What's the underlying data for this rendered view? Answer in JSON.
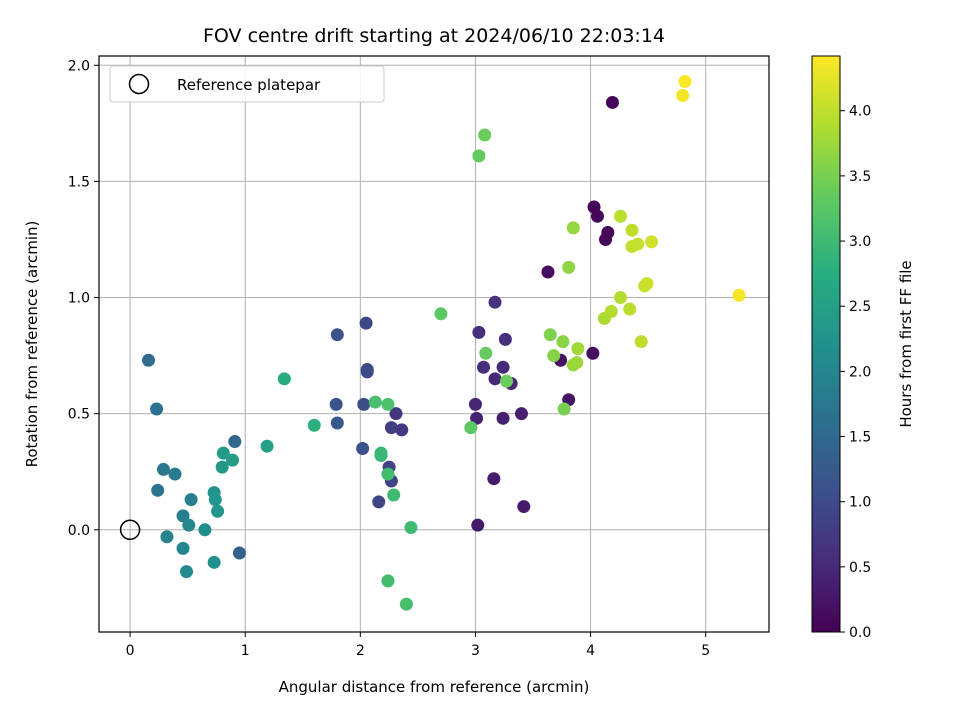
{
  "chart_data": {
    "type": "scatter",
    "title": "FOV centre drift starting at 2024/06/10 22:03:14",
    "xlabel": "Angular distance from reference (arcmin)",
    "ylabel": "Rotation from reference (arcmin)",
    "xlim": [
      -0.27,
      5.55
    ],
    "ylim": [
      -0.44,
      2.04
    ],
    "xticks": [
      0,
      1,
      2,
      3,
      4,
      5
    ],
    "xtick_labels": [
      "0",
      "1",
      "2",
      "3",
      "4",
      "5"
    ],
    "yticks": [
      0.0,
      0.5,
      1.0,
      1.5,
      2.0
    ],
    "ytick_labels": [
      "0.0",
      "0.5",
      "1.0",
      "1.5",
      "2.0"
    ],
    "grid": true,
    "legend": {
      "placement": "top-left",
      "entries": [
        "Reference platepar"
      ]
    },
    "reference_point": {
      "x": 0,
      "y": 0,
      "marker": "open-circle"
    },
    "colorbar": {
      "label": "Hours from first FF file",
      "colormap": "viridis",
      "min": 0.0,
      "max": 4.42,
      "ticks": [
        0.0,
        0.5,
        1.0,
        1.5,
        2.0,
        2.5,
        3.0,
        3.5,
        4.0
      ],
      "tick_labels": [
        "0.0",
        "0.5",
        "1.0",
        "1.5",
        "2.0",
        "2.5",
        "3.0",
        "3.5",
        "4.0"
      ]
    },
    "points": [
      {
        "x": 4.19,
        "y": 1.84,
        "t": 0.05
      },
      {
        "x": 4.03,
        "y": 1.39,
        "t": 0.05
      },
      {
        "x": 4.06,
        "y": 1.35,
        "t": 0.06
      },
      {
        "x": 4.15,
        "y": 1.28,
        "t": 0.08
      },
      {
        "x": 4.13,
        "y": 1.25,
        "t": 0.1
      },
      {
        "x": 3.63,
        "y": 1.11,
        "t": 0.15
      },
      {
        "x": 4.02,
        "y": 0.76,
        "t": 0.18
      },
      {
        "x": 3.74,
        "y": 0.73,
        "t": 0.2
      },
      {
        "x": 3.81,
        "y": 0.56,
        "t": 0.25
      },
      {
        "x": 3.02,
        "y": 0.02,
        "t": 0.3
      },
      {
        "x": 3.42,
        "y": 0.1,
        "t": 0.33
      },
      {
        "x": 3.16,
        "y": 0.22,
        "t": 0.35
      },
      {
        "x": 3.4,
        "y": 0.5,
        "t": 0.38
      },
      {
        "x": 3.24,
        "y": 0.48,
        "t": 0.4
      },
      {
        "x": 3.01,
        "y": 0.48,
        "t": 0.42
      },
      {
        "x": 3.0,
        "y": 0.54,
        "t": 0.45
      },
      {
        "x": 3.31,
        "y": 0.63,
        "t": 0.48
      },
      {
        "x": 3.17,
        "y": 0.65,
        "t": 0.5
      },
      {
        "x": 3.24,
        "y": 0.7,
        "t": 0.52
      },
      {
        "x": 3.07,
        "y": 0.7,
        "t": 0.55
      },
      {
        "x": 3.26,
        "y": 0.82,
        "t": 0.58
      },
      {
        "x": 3.03,
        "y": 0.85,
        "t": 0.6
      },
      {
        "x": 3.17,
        "y": 0.98,
        "t": 0.62
      },
      {
        "x": 2.31,
        "y": 0.5,
        "t": 0.7
      },
      {
        "x": 2.36,
        "y": 0.43,
        "t": 0.75
      },
      {
        "x": 2.27,
        "y": 0.44,
        "t": 0.8
      },
      {
        "x": 2.27,
        "y": 0.21,
        "t": 0.85
      },
      {
        "x": 2.25,
        "y": 0.27,
        "t": 0.88
      },
      {
        "x": 2.16,
        "y": 0.12,
        "t": 0.9
      },
      {
        "x": 2.05,
        "y": 0.89,
        "t": 0.95
      },
      {
        "x": 2.06,
        "y": 0.69,
        "t": 1.0
      },
      {
        "x": 2.06,
        "y": 0.68,
        "t": 1.02
      },
      {
        "x": 2.03,
        "y": 0.54,
        "t": 1.05
      },
      {
        "x": 2.02,
        "y": 0.35,
        "t": 1.1
      },
      {
        "x": 1.8,
        "y": 0.84,
        "t": 1.1
      },
      {
        "x": 1.79,
        "y": 0.54,
        "t": 1.15
      },
      {
        "x": 1.8,
        "y": 0.46,
        "t": 1.2
      },
      {
        "x": 0.95,
        "y": -0.1,
        "t": 1.4
      },
      {
        "x": 0.91,
        "y": 0.38,
        "t": 1.45
      },
      {
        "x": 0.16,
        "y": 0.73,
        "t": 1.55
      },
      {
        "x": 0.23,
        "y": 0.52,
        "t": 1.65
      },
      {
        "x": 0.24,
        "y": 0.17,
        "t": 1.7
      },
      {
        "x": 0.29,
        "y": 0.26,
        "t": 1.75
      },
      {
        "x": 0.39,
        "y": 0.24,
        "t": 1.8
      },
      {
        "x": 0.46,
        "y": 0.06,
        "t": 1.85
      },
      {
        "x": 0.53,
        "y": 0.13,
        "t": 1.9
      },
      {
        "x": 0.32,
        "y": -0.03,
        "t": 1.95
      },
      {
        "x": 0.46,
        "y": -0.08,
        "t": 2.0
      },
      {
        "x": 0.51,
        "y": 0.02,
        "t": 2.05
      },
      {
        "x": 0.49,
        "y": -0.18,
        "t": 2.1
      },
      {
        "x": 0.65,
        "y": 0.0,
        "t": 2.15
      },
      {
        "x": 0.73,
        "y": -0.14,
        "t": 2.2
      },
      {
        "x": 0.73,
        "y": 0.16,
        "t": 2.25
      },
      {
        "x": 0.74,
        "y": 0.13,
        "t": 2.3
      },
      {
        "x": 0.76,
        "y": 0.08,
        "t": 2.32
      },
      {
        "x": 0.8,
        "y": 0.27,
        "t": 2.35
      },
      {
        "x": 0.81,
        "y": 0.33,
        "t": 2.4
      },
      {
        "x": 0.89,
        "y": 0.3,
        "t": 2.42
      },
      {
        "x": 1.19,
        "y": 0.36,
        "t": 2.5
      },
      {
        "x": 1.34,
        "y": 0.65,
        "t": 2.7
      },
      {
        "x": 1.6,
        "y": 0.45,
        "t": 2.8
      },
      {
        "x": 2.18,
        "y": 0.33,
        "t": 2.9
      },
      {
        "x": 2.18,
        "y": 0.32,
        "t": 2.95
      },
      {
        "x": 2.29,
        "y": 0.15,
        "t": 3.0
      },
      {
        "x": 2.24,
        "y": 0.24,
        "t": 3.05
      },
      {
        "x": 2.44,
        "y": 0.01,
        "t": 3.0
      },
      {
        "x": 2.24,
        "y": -0.22,
        "t": 3.05
      },
      {
        "x": 2.4,
        "y": -0.32,
        "t": 3.1
      },
      {
        "x": 2.13,
        "y": 0.55,
        "t": 3.1
      },
      {
        "x": 2.24,
        "y": 0.54,
        "t": 3.15
      },
      {
        "x": 2.7,
        "y": 0.93,
        "t": 3.3
      },
      {
        "x": 2.96,
        "y": 0.44,
        "t": 3.3
      },
      {
        "x": 3.03,
        "y": 1.61,
        "t": 3.35
      },
      {
        "x": 3.08,
        "y": 1.7,
        "t": 3.4
      },
      {
        "x": 3.09,
        "y": 0.76,
        "t": 3.35
      },
      {
        "x": 3.27,
        "y": 0.64,
        "t": 3.4
      },
      {
        "x": 3.77,
        "y": 0.52,
        "t": 3.5
      },
      {
        "x": 3.65,
        "y": 0.84,
        "t": 3.55
      },
      {
        "x": 3.68,
        "y": 0.75,
        "t": 3.6
      },
      {
        "x": 3.76,
        "y": 0.81,
        "t": 3.62
      },
      {
        "x": 3.81,
        "y": 1.13,
        "t": 3.65
      },
      {
        "x": 3.85,
        "y": 1.3,
        "t": 3.7
      },
      {
        "x": 3.85,
        "y": 0.71,
        "t": 3.72
      },
      {
        "x": 3.88,
        "y": 0.72,
        "t": 3.75
      },
      {
        "x": 3.89,
        "y": 0.78,
        "t": 3.78
      },
      {
        "x": 4.12,
        "y": 0.91,
        "t": 3.85
      },
      {
        "x": 4.18,
        "y": 0.94,
        "t": 3.9
      },
      {
        "x": 4.26,
        "y": 1.0,
        "t": 3.92
      },
      {
        "x": 4.26,
        "y": 1.35,
        "t": 3.95
      },
      {
        "x": 4.34,
        "y": 0.95,
        "t": 3.95
      },
      {
        "x": 4.36,
        "y": 1.29,
        "t": 4.0
      },
      {
        "x": 4.36,
        "y": 1.22,
        "t": 4.02
      },
      {
        "x": 4.41,
        "y": 1.23,
        "t": 4.05
      },
      {
        "x": 4.44,
        "y": 0.81,
        "t": 3.98
      },
      {
        "x": 4.47,
        "y": 1.05,
        "t": 4.05
      },
      {
        "x": 4.49,
        "y": 1.06,
        "t": 4.08
      },
      {
        "x": 4.53,
        "y": 1.24,
        "t": 4.1
      },
      {
        "x": 4.8,
        "y": 1.87,
        "t": 4.35
      },
      {
        "x": 4.82,
        "y": 1.93,
        "t": 4.4
      },
      {
        "x": 5.29,
        "y": 1.01,
        "t": 4.38
      }
    ]
  }
}
